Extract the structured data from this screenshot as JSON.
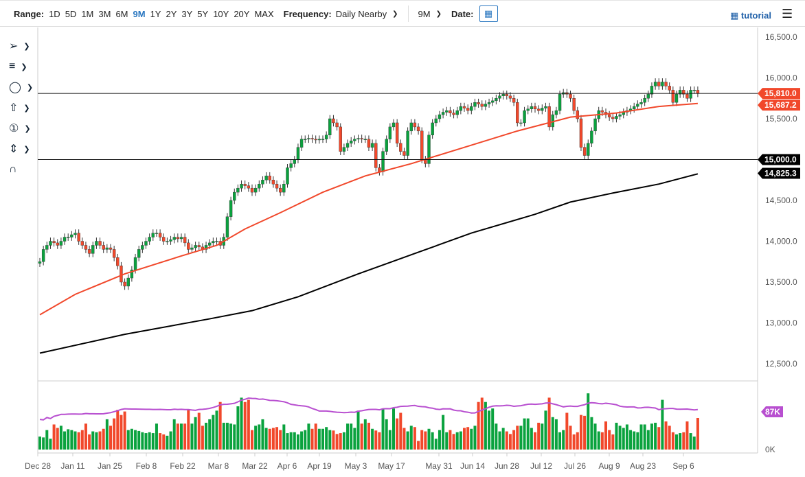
{
  "topbar": {
    "range_label": "Range:",
    "ranges": [
      "1D",
      "5D",
      "1M",
      "3M",
      "6M",
      "9M",
      "1Y",
      "2Y",
      "3Y",
      "5Y",
      "10Y",
      "20Y",
      "MAX"
    ],
    "active_range": "9M",
    "frequency_label": "Frequency:",
    "frequency_value": "Daily Nearby",
    "period_value": "9M",
    "date_label": "Date:",
    "tutorial_label": "tutorial"
  },
  "toolbar": {
    "tools": [
      "line-tool-icon",
      "fib-tool-icon",
      "shape-tool-icon",
      "arrow-tool-icon",
      "counter-tool-icon",
      "measure-tool-icon",
      "magnet-icon"
    ]
  },
  "colors": {
    "up": "#0aa23e",
    "down": "#f1482b",
    "ma50": "#f1482b",
    "ma200": "#000000",
    "volume_avg": "#b84fd0",
    "tag_red": "#f1482b",
    "tag_black": "#000000"
  },
  "chart_data": {
    "type": "candlestick",
    "price_axis": {
      "ticks": [
        "16,500.0",
        "16,000.0",
        "15,500.0",
        "15,000.0",
        "14,500.0",
        "14,000.0",
        "13,500.0",
        "13,000.0",
        "12,500.0"
      ],
      "tick_values": [
        16500,
        16000,
        15500,
        15000,
        14500,
        14000,
        13500,
        13000,
        12500
      ],
      "range": [
        12500,
        16500
      ]
    },
    "x_axis": {
      "ticks": [
        "Dec 28",
        "Jan 11",
        "Jan 25",
        "Feb 8",
        "Feb 22",
        "Mar 8",
        "Mar 22",
        "Apr 6",
        "Apr 19",
        "May 3",
        "May 17",
        "May 31",
        "Jun 14",
        "Jun 28",
        "Jul 12",
        "Jul 26",
        "Aug 9",
        "Aug 23",
        "Sep 6"
      ]
    },
    "close": [
      13750,
      13900,
      13950,
      14000,
      13980,
      13950,
      14000,
      14050,
      14050,
      14080,
      14100,
      14000,
      13950,
      13900,
      13850,
      13950,
      14000,
      13950,
      13900,
      13920,
      13900,
      13800,
      13700,
      13500,
      13450,
      13550,
      13650,
      13800,
      13900,
      13950,
      14000,
      14050,
      14100,
      14100,
      14050,
      14000,
      14000,
      14020,
      14050,
      14030,
      14050,
      13980,
      13900,
      13920,
      13950,
      13930,
      13900,
      13950,
      13980,
      14000,
      14000,
      13950,
      14050,
      14300,
      14500,
      14600,
      14650,
      14700,
      14680,
      14650,
      14600,
      14650,
      14700,
      14750,
      14800,
      14750,
      14700,
      14650,
      14600,
      14700,
      14900,
      14950,
      15000,
      15150,
      15250,
      15250,
      15260,
      15250,
      15240,
      15250,
      15250,
      15300,
      15500,
      15450,
      15400,
      15100,
      15150,
      15200,
      15230,
      15250,
      15260,
      15250,
      15250,
      15150,
      15200,
      14900,
      14850,
      15100,
      15250,
      15400,
      15450,
      15200,
      15100,
      15050,
      15350,
      15450,
      15400,
      15350,
      15000,
      14950,
      15300,
      15450,
      15500,
      15550,
      15580,
      15600,
      15570,
      15550,
      15600,
      15650,
      15630,
      15600,
      15650,
      15700,
      15680,
      15650,
      15680,
      15700,
      15720,
      15750,
      15780,
      15800,
      15780,
      15750,
      15700,
      15450,
      15450,
      15600,
      15620,
      15650,
      15620,
      15600,
      15630,
      15650,
      15400,
      15550,
      15600,
      15800,
      15820,
      15800,
      15750,
      15600,
      15500,
      15150,
      15050,
      15200,
      15350,
      15500,
      15600,
      15580,
      15550,
      15520,
      15500,
      15530,
      15550,
      15580,
      15600,
      15620,
      15650,
      15680,
      15700,
      15750,
      15800,
      15900,
      15950,
      15900,
      15950,
      15900,
      15850,
      15700,
      15800,
      15850,
      15800,
      15750,
      15850,
      15850,
      15810
    ],
    "volume_k": [
      30,
      28,
      45,
      25,
      58,
      50,
      55,
      42,
      47,
      45,
      42,
      40,
      45,
      60,
      35,
      42,
      40,
      42,
      48,
      70,
      55,
      72,
      92,
      80,
      88,
      45,
      48,
      45,
      43,
      40,
      38,
      40,
      38,
      60,
      38,
      35,
      32,
      42,
      70,
      60,
      60,
      60,
      92,
      60,
      75,
      85,
      55,
      62,
      70,
      80,
      90,
      110,
      62,
      62,
      60,
      58,
      100,
      120,
      110,
      115,
      45,
      55,
      58,
      70,
      50,
      48,
      50,
      52,
      45,
      58,
      38,
      40,
      40,
      35,
      42,
      45,
      60,
      48,
      60,
      48,
      48,
      52,
      45,
      44,
      36,
      38,
      40,
      60,
      60,
      50,
      90,
      60,
      70,
      62,
      48,
      44,
      40,
      95,
      70,
      45,
      95,
      72,
      85,
      50,
      42,
      55,
      52,
      20,
      45,
      42,
      48,
      40,
      25,
      45,
      80,
      40,
      45,
      36,
      40,
      42,
      50,
      52,
      48,
      55,
      110,
      120,
      110,
      90,
      95,
      60,
      42,
      50,
      42,
      36,
      45,
      55,
      55,
      72,
      72,
      50,
      40,
      62,
      60,
      90,
      120,
      75,
      70,
      40,
      45,
      85,
      55,
      35,
      40,
      80,
      78,
      130,
      75,
      60,
      42,
      40,
      65,
      45,
      35,
      62,
      55,
      50,
      58,
      45,
      42,
      40,
      58,
      58,
      45,
      60,
      62,
      52,
      115,
      65,
      55,
      40,
      35,
      38,
      40,
      65,
      38,
      30,
      73
    ],
    "ma50": [
      [
        0,
        13100
      ],
      [
        10,
        13350
      ],
      [
        24,
        13600
      ],
      [
        40,
        13820
      ],
      [
        50,
        13950
      ],
      [
        58,
        14150
      ],
      [
        68,
        14350
      ],
      [
        80,
        14600
      ],
      [
        92,
        14800
      ],
      [
        105,
        14950
      ],
      [
        120,
        15150
      ],
      [
        135,
        15350
      ],
      [
        150,
        15520
      ],
      [
        163,
        15570
      ],
      [
        175,
        15650
      ],
      [
        186,
        15687.2
      ]
    ],
    "ma200": [
      [
        0,
        12630
      ],
      [
        24,
        12860
      ],
      [
        48,
        13050
      ],
      [
        60,
        13150
      ],
      [
        73,
        13320
      ],
      [
        90,
        13600
      ],
      [
        106,
        13850
      ],
      [
        122,
        14100
      ],
      [
        140,
        14330
      ],
      [
        150,
        14480
      ],
      [
        162,
        14590
      ],
      [
        175,
        14700
      ],
      [
        186,
        14825.3
      ]
    ],
    "horizontal_lines": [
      15810,
      15000
    ],
    "price_tags": [
      {
        "label": "15,810.0",
        "color": "red"
      },
      {
        "label": "15,687.2",
        "color": "red"
      },
      {
        "label": "15,000.0",
        "color": "black"
      },
      {
        "label": "14,825.3",
        "color": "black"
      }
    ],
    "volume_axis": {
      "ticks": [
        "87K",
        "0K"
      ]
    }
  }
}
